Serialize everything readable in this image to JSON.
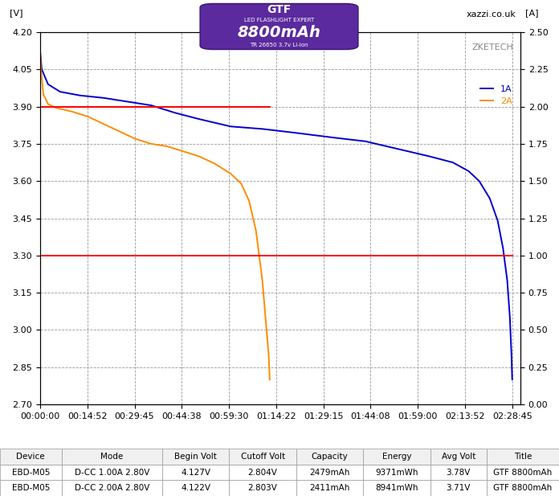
{
  "chart_data": {
    "type": "line",
    "y_label": "[V]",
    "y2_label": "[A]",
    "annotations": [
      "xazzi.co.uk",
      "ZKETECH"
    ],
    "xlim": [
      0,
      9080
    ],
    "xticks": [
      {
        "value": 0,
        "label": "00:00:00"
      },
      {
        "value": 892,
        "label": "00:14:52"
      },
      {
        "value": 1785,
        "label": "00:29:45"
      },
      {
        "value": 2678,
        "label": "00:44:38"
      },
      {
        "value": 3570,
        "label": "00:59:30"
      },
      {
        "value": 4462,
        "label": "01:14:22"
      },
      {
        "value": 5355,
        "label": "01:29:15"
      },
      {
        "value": 6248,
        "label": "01:44:08"
      },
      {
        "value": 7140,
        "label": "01:59:00"
      },
      {
        "value": 8032,
        "label": "02:13:52"
      },
      {
        "value": 8925,
        "label": "02:28:45"
      }
    ],
    "ylim": [
      2.7,
      4.2
    ],
    "yticks": [
      {
        "value": 2.7,
        "label": "2.70"
      },
      {
        "value": 2.85,
        "label": "2.85"
      },
      {
        "value": 3.0,
        "label": "3.00"
      },
      {
        "value": 3.15,
        "label": "3.15"
      },
      {
        "value": 3.3,
        "label": "3.30"
      },
      {
        "value": 3.45,
        "label": "3.45"
      },
      {
        "value": 3.6,
        "label": "3.60"
      },
      {
        "value": 3.75,
        "label": "3.75"
      },
      {
        "value": 3.9,
        "label": "3.90"
      },
      {
        "value": 4.05,
        "label": "4.05"
      },
      {
        "value": 4.2,
        "label": "4.20"
      }
    ],
    "y2lim": [
      0,
      2.5
    ],
    "y2ticks": [
      {
        "value": 0,
        "label": "0.00"
      },
      {
        "value": 0.25,
        "label": "0.25"
      },
      {
        "value": 0.5,
        "label": "0.50"
      },
      {
        "value": 0.75,
        "label": "0.75"
      },
      {
        "value": 1.0,
        "label": "1.00"
      },
      {
        "value": 1.25,
        "label": "1.25"
      },
      {
        "value": 1.5,
        "label": "1.50"
      },
      {
        "value": 1.75,
        "label": "1.75"
      },
      {
        "value": 2.0,
        "label": "2.00"
      },
      {
        "value": 2.25,
        "label": "2.25"
      },
      {
        "value": 2.5,
        "label": "2.50"
      }
    ],
    "grid": true,
    "legend": "upper right",
    "series": [
      {
        "name": "1A",
        "color": "#0000cc",
        "x": [
          0,
          30,
          150,
          375,
          750,
          1200,
          1650,
          2100,
          2550,
          3000,
          3300,
          3600,
          4200,
          4800,
          5550,
          6150,
          6750,
          7350,
          7800,
          8100,
          8300,
          8500,
          8650,
          8750,
          8830,
          8880,
          8910,
          8924
        ],
        "values": [
          4.12,
          4.05,
          3.99,
          3.96,
          3.945,
          3.935,
          3.92,
          3.905,
          3.875,
          3.85,
          3.835,
          3.82,
          3.81,
          3.795,
          3.775,
          3.76,
          3.73,
          3.7,
          3.675,
          3.64,
          3.6,
          3.53,
          3.44,
          3.33,
          3.2,
          3.05,
          2.9,
          2.8
        ]
      },
      {
        "name": "2A",
        "color": "#ff8c00",
        "x": [
          0,
          15,
          60,
          150,
          300,
          600,
          900,
          1200,
          1500,
          1800,
          2100,
          2400,
          2700,
          3000,
          3300,
          3600,
          3800,
          3950,
          4080,
          4200,
          4280,
          4320,
          4340
        ],
        "values": [
          4.12,
          4.05,
          3.95,
          3.91,
          3.895,
          3.88,
          3.86,
          3.83,
          3.8,
          3.77,
          3.75,
          3.74,
          3.72,
          3.7,
          3.67,
          3.63,
          3.59,
          3.52,
          3.4,
          3.2,
          3.0,
          2.9,
          2.8
        ]
      },
      {
        "color": "#ff0000",
        "axis": "y2",
        "x": [
          0,
          0,
          4340
        ],
        "values": [
          0,
          2.0,
          2.0
        ]
      },
      {
        "color": "#ff0000",
        "axis": "y2",
        "x": [
          0,
          0,
          8924
        ],
        "values": [
          0,
          1.0,
          1.0
        ]
      }
    ]
  },
  "battery_label": {
    "brand": "GTF",
    "line": "LED FLASHLIGHT EXPERT",
    "capacity": "8800mAh",
    "model": "TR 26650 3.7v Li-ion"
  },
  "table": {
    "columns": [
      "Device",
      "Mode",
      "Begin Volt",
      "Cutoff Volt",
      "Capacity",
      "Energy",
      "Avg Volt",
      "Title"
    ],
    "rows": [
      [
        "EBD-M05",
        "D-CC 1.00A 2.80V",
        "4.127V",
        "2.804V",
        "2479mAh",
        "9371mWh",
        "3.78V",
        "GTF 8800mAh"
      ],
      [
        "EBD-M05",
        "D-CC 2.00A 2.80V",
        "4.122V",
        "2.803V",
        "2411mAh",
        "8941mWh",
        "3.71V",
        "GTF 8800mAh"
      ]
    ]
  }
}
